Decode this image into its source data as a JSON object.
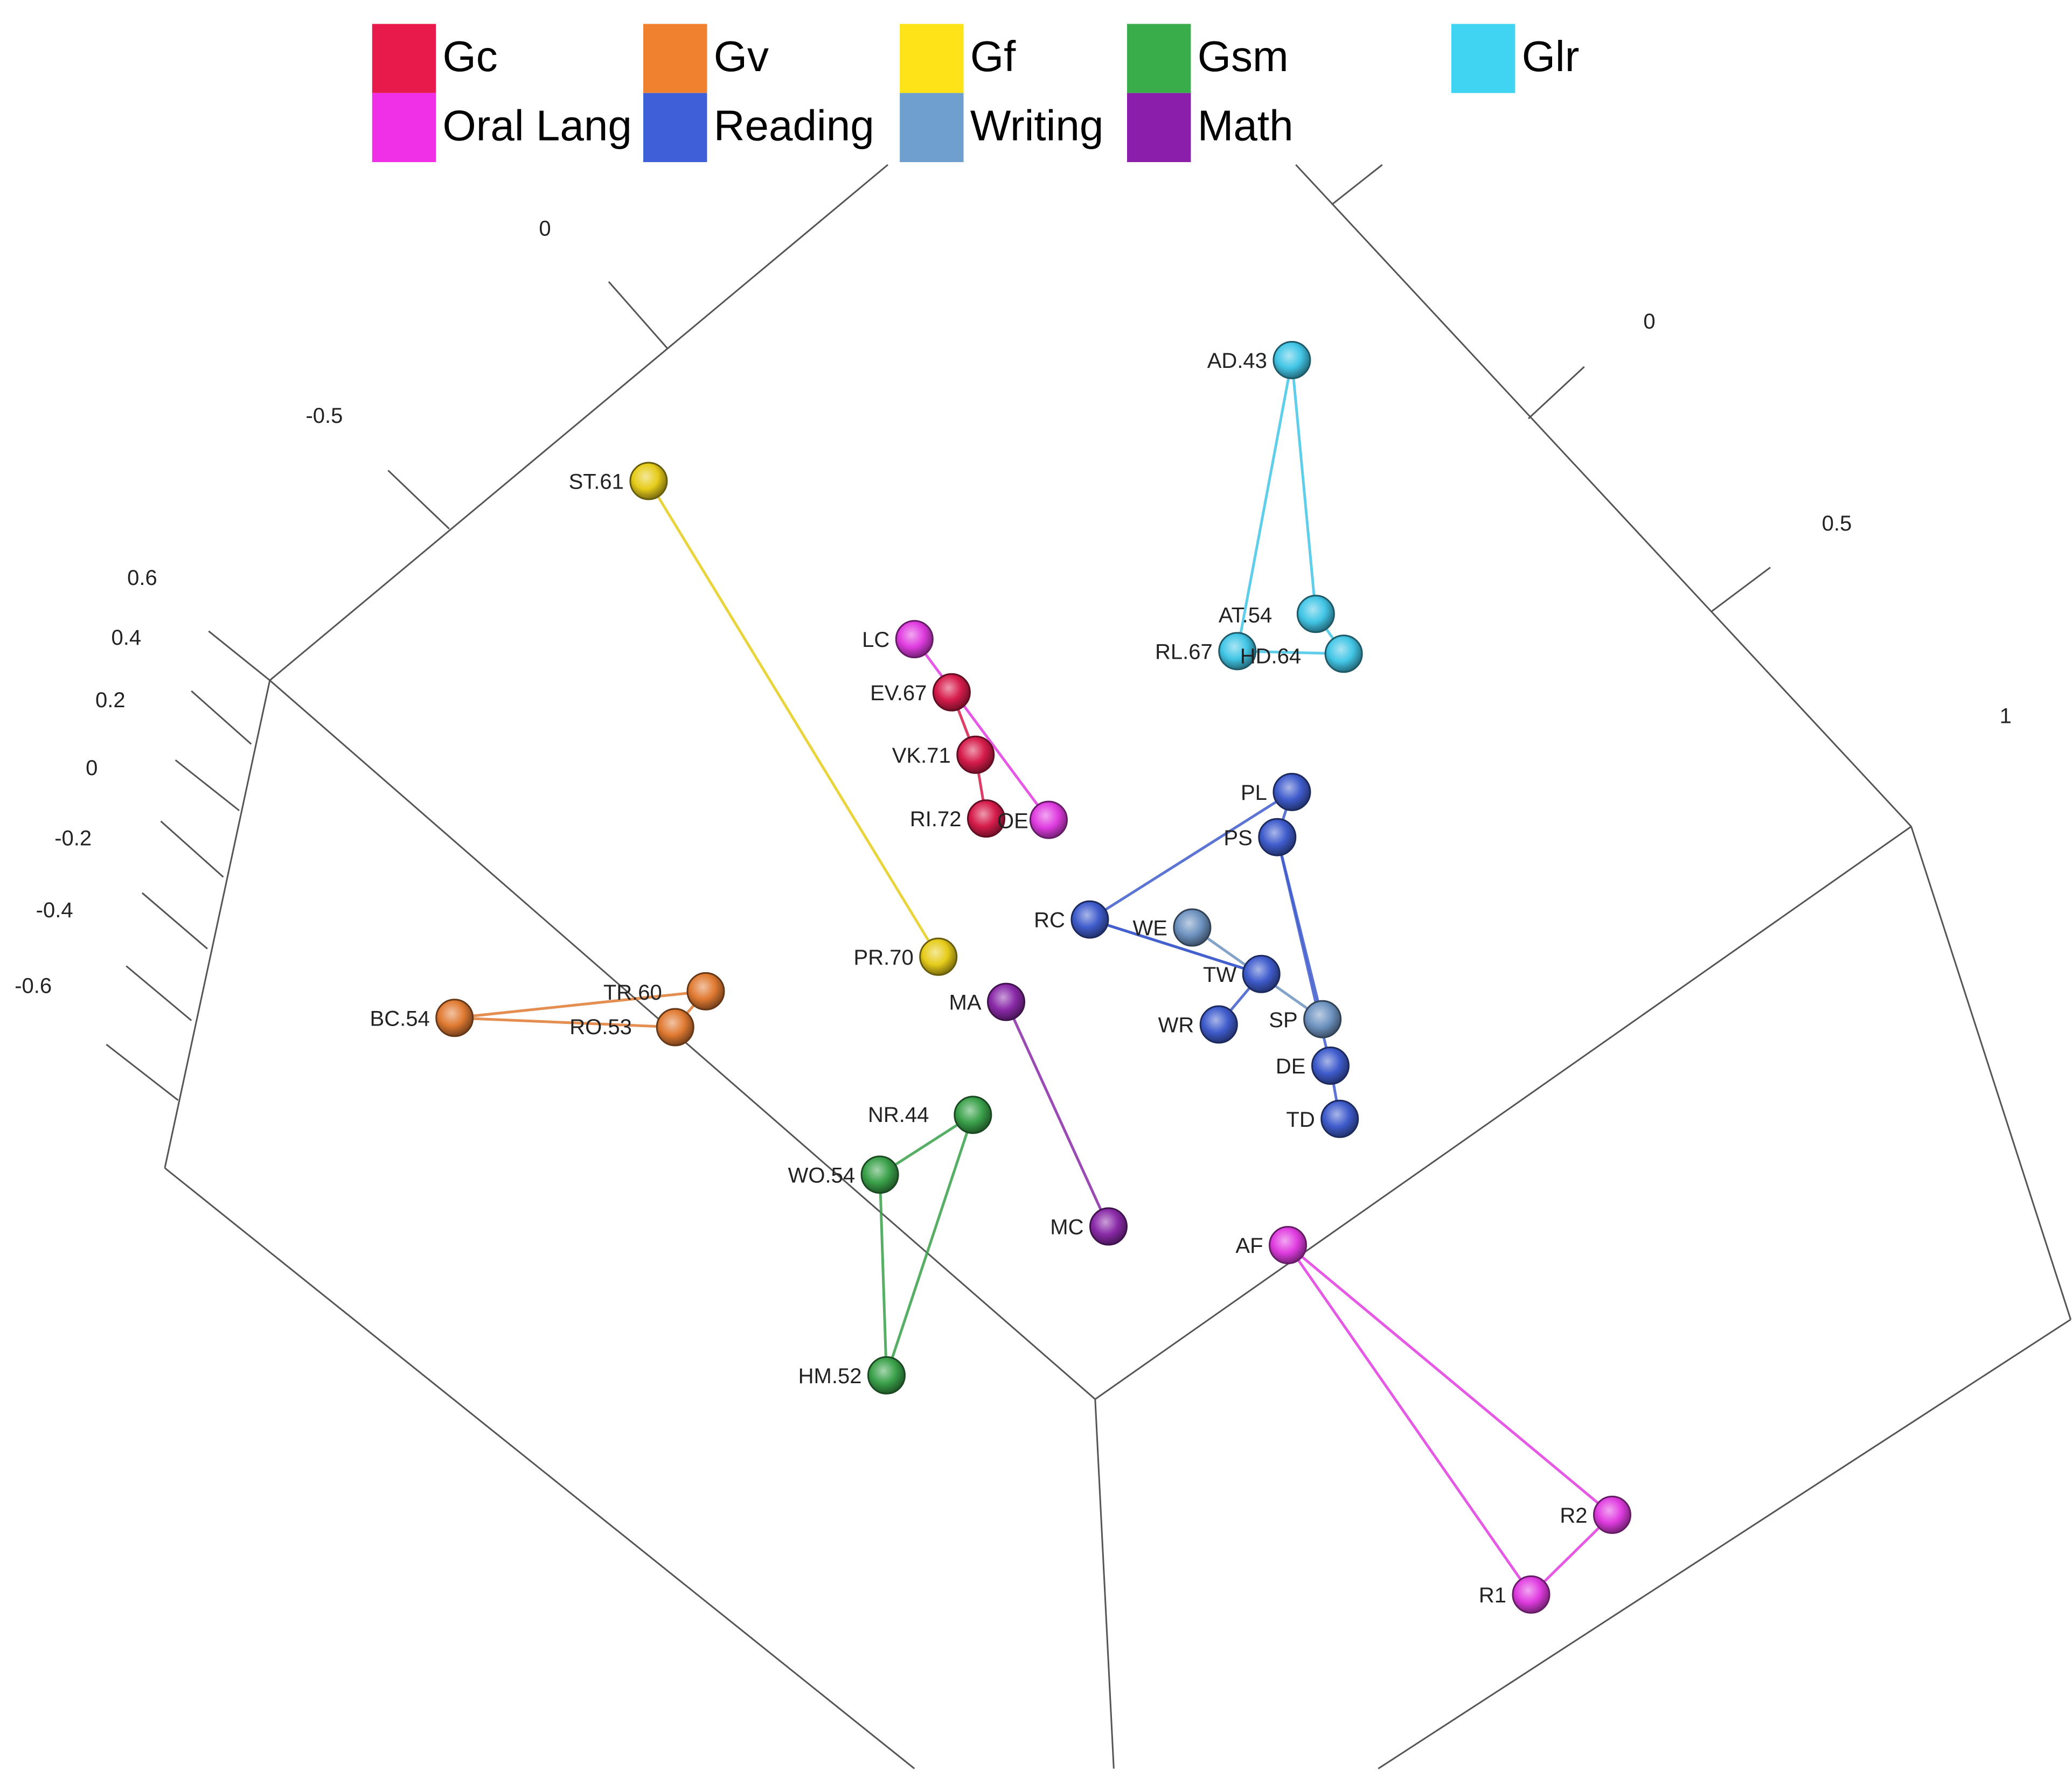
{
  "chart_data": {
    "type": "scatter",
    "projection": "3d",
    "axes": {
      "upper_left": {
        "ticks": [
          "0",
          "-0.5"
        ]
      },
      "upper_right": {
        "ticks": [
          "0",
          "0.5",
          "1"
        ]
      },
      "left_vertical": {
        "ticks": [
          "0.6",
          "0.4",
          "0.2",
          "0",
          "-0.2",
          "-0.4",
          "-0.6"
        ]
      }
    },
    "legend": {
      "placement": "top",
      "entries": [
        {
          "name": "Gc",
          "color": "#e8194b"
        },
        {
          "name": "Gv",
          "color": "#f0812e"
        },
        {
          "name": "Gf",
          "color": "#fde317"
        },
        {
          "name": "Gsm",
          "color": "#3aad4b"
        },
        {
          "name": "Glr",
          "color": "#40d4f2"
        },
        {
          "name": "Oral Lang",
          "color": "#f030e6"
        },
        {
          "name": "Reading",
          "color": "#3f5fd8"
        },
        {
          "name": "Writing",
          "color": "#6f9fcf"
        },
        {
          "name": "Math",
          "color": "#8b1eab"
        }
      ]
    },
    "series": [
      {
        "group": "Gc",
        "color": "#d61c4b",
        "points": [
          "EV.67",
          "VK.71",
          "RI.72"
        ]
      },
      {
        "group": "Gv",
        "color": "#e07a32",
        "points": [
          "BC.54",
          "TR.60",
          "RO.53"
        ]
      },
      {
        "group": "Gf",
        "color": "#e6cc1a",
        "points": [
          "ST.61",
          "PR.70"
        ]
      },
      {
        "group": "Gsm",
        "color": "#3aa14a",
        "points": [
          "NR.44",
          "WO.54",
          "HM.52"
        ]
      },
      {
        "group": "Glr",
        "color": "#42c6e6",
        "points": [
          "AD.43",
          "AT.54",
          "RL.67",
          "HD.64"
        ]
      },
      {
        "group": "Oral Lang",
        "color": "#e03ce0",
        "points": [
          "LC",
          "OE",
          "AF",
          "R2",
          "R1"
        ]
      },
      {
        "group": "Reading",
        "color": "#3f5ccc",
        "points": [
          "PL",
          "PS",
          "RC",
          "TW",
          "WR",
          "DE",
          "TD"
        ]
      },
      {
        "group": "Writing",
        "color": "#6e93c0",
        "points": [
          "WE",
          "SP"
        ]
      },
      {
        "group": "Math",
        "color": "#8a2aa8",
        "points": [
          "MA",
          "MC"
        ]
      }
    ]
  }
}
